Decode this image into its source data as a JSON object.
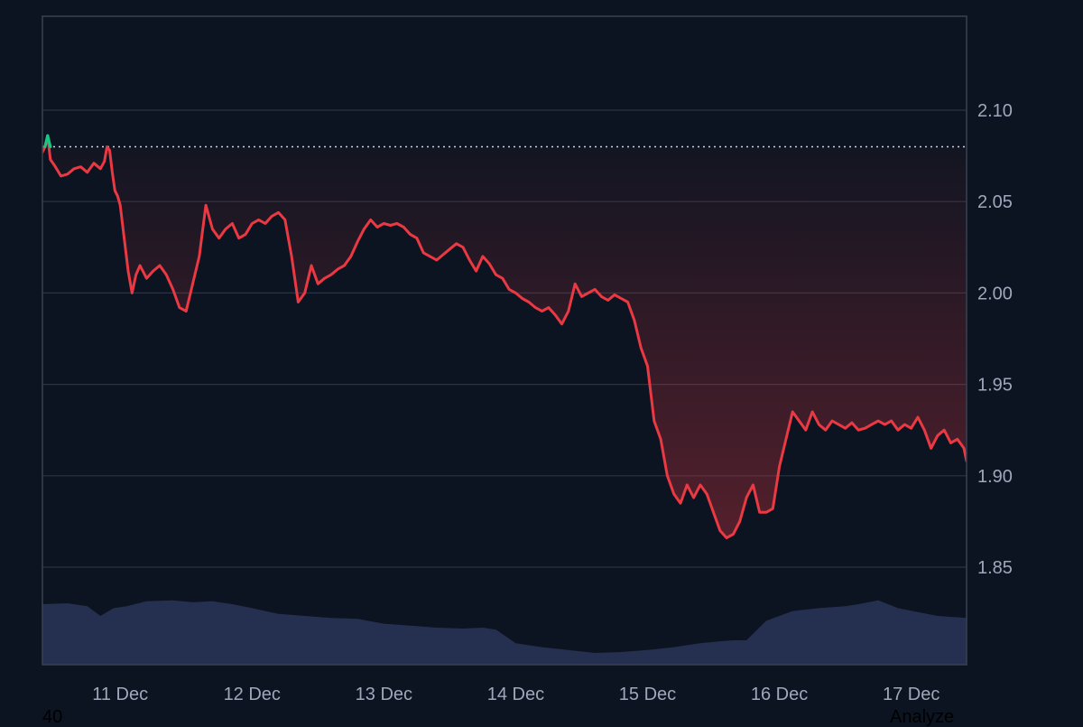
{
  "chart_data": {
    "type": "line",
    "title": "",
    "xlabel": "",
    "ylabel": "",
    "ylim": [
      1.8,
      2.15
    ],
    "y_ticks": [
      2.1,
      2.05,
      2.0,
      1.95,
      1.9,
      1.85
    ],
    "y_tick_labels": [
      "2.10",
      "2.05",
      "2.00",
      "1.95",
      "1.90",
      "1.85"
    ],
    "x_range_days": [
      10.41,
      17.42
    ],
    "x_ticks": [
      11,
      12,
      13,
      14,
      15,
      16,
      17
    ],
    "x_tick_labels": [
      "11 Dec",
      "12 Dec",
      "13 Dec",
      "14 Dec",
      "15 Dec",
      "16 Dec",
      "17 Dec"
    ],
    "grid": true,
    "legend": "none",
    "reference_price": 2.08,
    "colors": {
      "background": "#0d1421",
      "grid": "#2b3243",
      "axis": "#3a4152",
      "line_down": "#ea3943",
      "line_up": "#16c784",
      "reference_line": "#cfd3dc",
      "volume": "#252f4f",
      "tick_text": "#a1a7bb"
    },
    "series": [
      {
        "x": [
          10.41,
          10.43,
          10.45,
          10.47,
          10.5,
          10.55,
          10.6,
          10.65,
          10.7,
          10.75,
          10.8,
          10.85,
          10.88,
          10.9,
          10.92,
          10.94,
          10.96,
          10.98,
          11.0,
          11.03,
          11.06,
          11.09,
          11.12,
          11.15,
          11.2,
          11.25,
          11.3,
          11.35,
          11.4,
          11.45,
          11.5,
          11.55,
          11.6,
          11.65,
          11.7,
          11.75,
          11.8,
          11.85,
          11.9,
          11.95,
          12.0,
          12.05,
          12.1,
          12.15,
          12.2,
          12.25,
          12.3,
          12.35,
          12.4,
          12.45,
          12.5,
          12.55,
          12.6,
          12.65,
          12.7,
          12.75,
          12.8,
          12.85,
          12.9,
          12.95,
          13.0,
          13.05,
          13.1,
          13.15,
          13.2,
          13.25,
          13.3,
          13.35,
          13.4,
          13.45,
          13.5,
          13.55,
          13.6,
          13.65,
          13.7,
          13.75,
          13.8,
          13.85,
          13.9,
          13.95,
          14.0,
          14.05,
          14.1,
          14.15,
          14.2,
          14.25,
          14.3,
          14.35,
          14.4,
          14.45,
          14.5,
          14.55,
          14.6,
          14.65,
          14.7,
          14.75,
          14.8,
          14.85,
          14.9,
          14.95,
          15.0,
          15.05,
          15.1,
          15.15,
          15.2,
          15.25,
          15.3,
          15.35,
          15.4,
          15.45,
          15.5,
          15.55,
          15.6,
          15.65,
          15.7,
          15.75,
          15.8,
          15.85,
          15.9,
          15.95,
          16.0,
          16.05,
          16.1,
          16.15,
          16.2,
          16.25,
          16.3,
          16.35,
          16.4,
          16.45,
          16.5,
          16.55,
          16.6,
          16.65,
          16.7,
          16.75,
          16.8,
          16.85,
          16.9,
          16.95,
          17.0,
          17.05,
          17.1,
          17.15,
          17.2,
          17.25,
          17.3,
          17.35,
          17.4,
          17.42
        ],
        "values": [
          2.077,
          2.08,
          2.086,
          2.073,
          2.07,
          2.064,
          2.065,
          2.068,
          2.069,
          2.066,
          2.071,
          2.068,
          2.072,
          2.08,
          2.078,
          2.066,
          2.056,
          2.053,
          2.048,
          2.03,
          2.012,
          2.0,
          2.01,
          2.015,
          2.008,
          2.012,
          2.015,
          2.01,
          2.002,
          1.992,
          1.99,
          2.005,
          2.02,
          2.048,
          2.035,
          2.03,
          2.035,
          2.038,
          2.03,
          2.032,
          2.038,
          2.04,
          2.038,
          2.042,
          2.044,
          2.04,
          2.02,
          1.995,
          2.0,
          2.015,
          2.005,
          2.008,
          2.01,
          2.013,
          2.015,
          2.02,
          2.028,
          2.035,
          2.04,
          2.036,
          2.038,
          2.037,
          2.038,
          2.036,
          2.032,
          2.03,
          2.022,
          2.02,
          2.018,
          2.021,
          2.024,
          2.027,
          2.025,
          2.018,
          2.012,
          2.02,
          2.016,
          2.01,
          2.008,
          2.002,
          2.0,
          1.997,
          1.995,
          1.992,
          1.99,
          1.992,
          1.988,
          1.983,
          1.99,
          2.005,
          1.998,
          2.0,
          2.002,
          1.998,
          1.996,
          1.999,
          1.997,
          1.995,
          1.985,
          1.97,
          1.96,
          1.93,
          1.92,
          1.9,
          1.89,
          1.885,
          1.895,
          1.888,
          1.895,
          1.89,
          1.88,
          1.87,
          1.866,
          1.868,
          1.875,
          1.888,
          1.895,
          1.88,
          1.88,
          1.882,
          1.905,
          1.92,
          1.935,
          1.93,
          1.925,
          1.935,
          1.928,
          1.925,
          1.93,
          1.928,
          1.926,
          1.929,
          1.925,
          1.926,
          1.928,
          1.93,
          1.928,
          1.93,
          1.925,
          1.928,
          1.926,
          1.932,
          1.925,
          1.915,
          1.922,
          1.925,
          1.918,
          1.92,
          1.915,
          1.908
        ]
      }
    ],
    "volume": {
      "x": [
        10.41,
        10.6,
        10.75,
        10.85,
        10.95,
        11.05,
        11.2,
        11.4,
        11.55,
        11.7,
        11.85,
        12.0,
        12.1,
        12.2,
        12.4,
        12.6,
        12.8,
        13.0,
        13.2,
        13.4,
        13.6,
        13.75,
        13.85,
        14.0,
        14.2,
        14.4,
        14.6,
        14.8,
        15.0,
        15.2,
        15.4,
        15.55,
        15.65,
        15.75,
        15.9,
        16.1,
        16.3,
        16.5,
        16.6,
        16.75,
        16.9,
        17.05,
        17.2,
        17.42
      ],
      "values": [
        0.62,
        0.63,
        0.6,
        0.5,
        0.58,
        0.6,
        0.65,
        0.66,
        0.64,
        0.65,
        0.62,
        0.58,
        0.55,
        0.52,
        0.5,
        0.48,
        0.47,
        0.42,
        0.4,
        0.38,
        0.37,
        0.38,
        0.36,
        0.22,
        0.18,
        0.15,
        0.12,
        0.13,
        0.15,
        0.18,
        0.22,
        0.24,
        0.25,
        0.25,
        0.45,
        0.55,
        0.58,
        0.6,
        0.62,
        0.66,
        0.58,
        0.54,
        0.5,
        0.48
      ]
    }
  },
  "footer": {
    "left_text": "40",
    "right_text": "Analyze"
  }
}
